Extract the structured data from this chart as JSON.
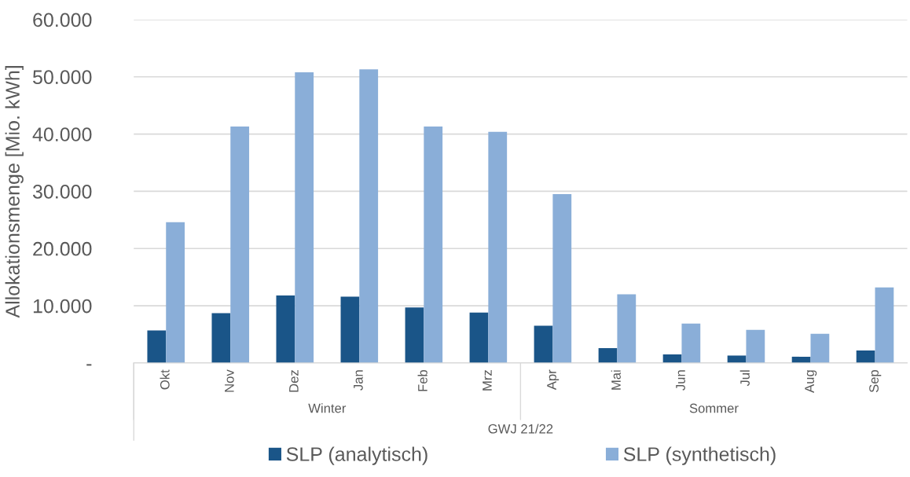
{
  "chart_data": {
    "type": "bar",
    "ylabel": "Allokationsmenge [Mio. kWh]",
    "xlabel": "GWJ 21/22",
    "annotations": [
      "Winter",
      "Sommer"
    ],
    "categories": [
      "Okt",
      "Nov",
      "Dez",
      "Jan",
      "Feb",
      "Mrz",
      "Apr",
      "Mai",
      "Jun",
      "Jul",
      "Aug",
      "Sep"
    ],
    "series": [
      {
        "name": "SLP (analytisch)",
        "color": "#1a5588",
        "values": [
          5700,
          8700,
          11800,
          11600,
          9700,
          8800,
          6500,
          2600,
          1500,
          1300,
          1100,
          2200
        ]
      },
      {
        "name": "SLP (synthetisch)",
        "color": "#8aaed8",
        "values": [
          24600,
          41300,
          50800,
          51300,
          41300,
          40400,
          29500,
          12000,
          6900,
          5800,
          5100,
          13200
        ]
      }
    ],
    "ylim": [
      0,
      60000
    ],
    "yticks": [
      {
        "value": 0,
        "label": "-"
      },
      {
        "value": 10000,
        "label": "10.000"
      },
      {
        "value": 20000,
        "label": "20.000"
      },
      {
        "value": 30000,
        "label": "30.000"
      },
      {
        "value": 40000,
        "label": "40.000"
      },
      {
        "value": 50000,
        "label": "50.000"
      },
      {
        "value": 60000,
        "label": "60.000"
      }
    ],
    "grid": "y",
    "legend": "bottom"
  }
}
